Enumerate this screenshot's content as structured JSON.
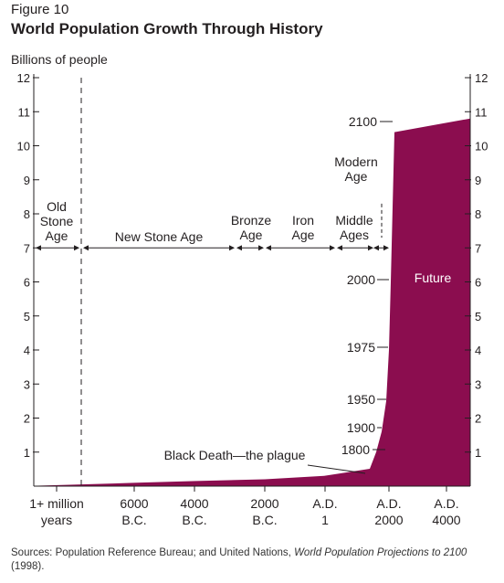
{
  "figure": {
    "label": "Figure 10",
    "title": "World Population Growth Through History"
  },
  "source": {
    "prefix": "Sources: Population Reference Bureau; and United Nations, ",
    "italic": "World Population Projections to 2100",
    "suffix": " (1998)."
  },
  "colors": {
    "fill": "#8b0d4f",
    "axis": "#231f20"
  },
  "chart_data": {
    "type": "area",
    "title": "World Population Growth Through History",
    "ylabel": "Billions of people",
    "xlabel": "",
    "ylim": [
      0,
      12
    ],
    "yticks": [
      1,
      2,
      3,
      4,
      5,
      6,
      7,
      8,
      9,
      10,
      11,
      12
    ],
    "x_tick_labels": [
      "1+ million years",
      "6000 B.C.",
      "4000 B.C.",
      "2000 B.C.",
      "A.D. 1",
      "A.D. 2000",
      "A.D. 4000"
    ],
    "series": [
      {
        "values": [
          {
            "x": "1+ million years",
            "y": 0.01
          },
          {
            "x": "6000 B.C.",
            "y": 0.1
          },
          {
            "x": "4000 B.C.",
            "y": 0.15
          },
          {
            "x": "2000 B.C.",
            "y": 0.2
          },
          {
            "x": "A.D. 1",
            "y": 0.3
          },
          {
            "x": "Black Death",
            "y": 0.35
          },
          {
            "x": "1800",
            "y": 1
          },
          {
            "x": "1900",
            "y": 1.6
          },
          {
            "x": "1950",
            "y": 2.5
          },
          {
            "x": "1975",
            "y": 4
          },
          {
            "x": "2000",
            "y": 6
          },
          {
            "x": "2100",
            "y": 10.4
          },
          {
            "x": "A.D. 4000",
            "y": 10.8
          }
        ]
      }
    ],
    "year_markers": [
      {
        "label": "1800",
        "y": 1
      },
      {
        "label": "1900",
        "y": 1.6
      },
      {
        "label": "1950",
        "y": 2.5
      },
      {
        "label": "1975",
        "y": 4
      },
      {
        "label": "2000",
        "y": 6
      },
      {
        "label": "2100",
        "y": 10.4
      }
    ],
    "eras": [
      {
        "label": "Old Stone Age"
      },
      {
        "label": "New Stone Age"
      },
      {
        "label": "Bronze Age"
      },
      {
        "label": "Iron Age"
      },
      {
        "label": "Middle Ages"
      },
      {
        "label": "Modern Age"
      }
    ],
    "annotations": {
      "black_death": "Black Death—the plague",
      "future": "Future"
    }
  }
}
